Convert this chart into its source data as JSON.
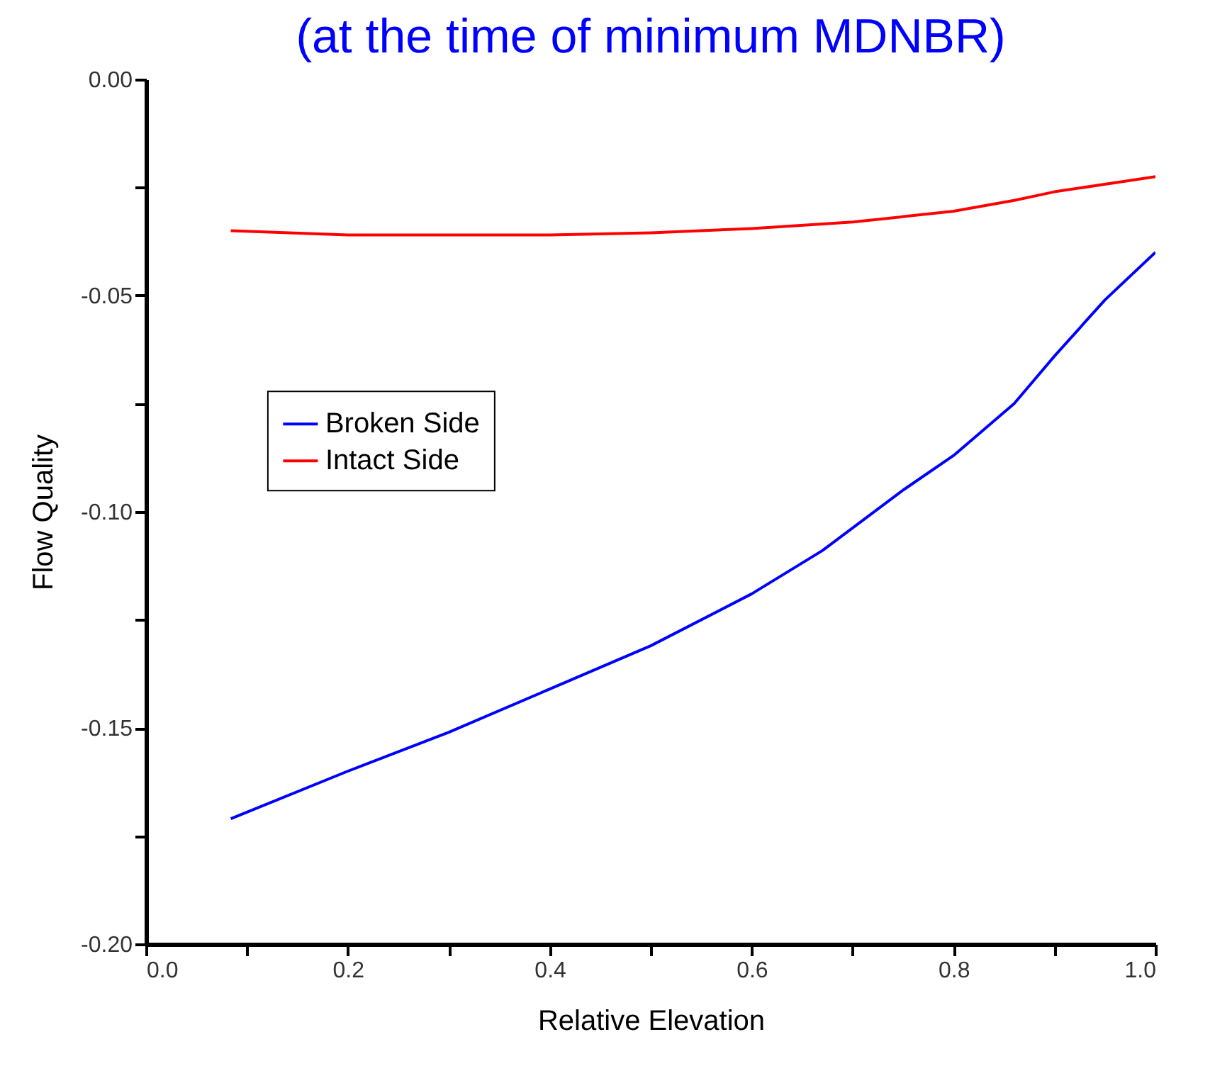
{
  "chart_data": {
    "type": "line",
    "title": "(at the time of minimum MDNBR)",
    "xlabel": "Relative Elevation",
    "ylabel": "Flow Quality",
    "series": [
      {
        "name": "Broken Side",
        "color": "#0000ff",
        "x": [
          0.084,
          0.2,
          0.3,
          0.4,
          0.5,
          0.6,
          0.67,
          0.75,
          0.8,
          0.86,
          0.9,
          0.95,
          1.0
        ],
        "values": [
          -0.171,
          -0.16,
          -0.151,
          -0.141,
          -0.131,
          -0.119,
          -0.109,
          -0.095,
          -0.087,
          -0.075,
          -0.064,
          -0.051,
          -0.04
        ]
      },
      {
        "name": "Intact Side",
        "color": "#ff0000",
        "x": [
          0.084,
          0.2,
          0.3,
          0.4,
          0.5,
          0.6,
          0.7,
          0.8,
          0.86,
          0.9,
          1.0
        ],
        "values": [
          -0.035,
          -0.036,
          -0.036,
          -0.036,
          -0.0355,
          -0.0345,
          -0.033,
          -0.0305,
          -0.028,
          -0.026,
          -0.0225
        ]
      }
    ],
    "xlim": [
      0,
      1
    ],
    "ylim": [
      -0.2,
      0
    ],
    "xticks": [
      {
        "value": 0,
        "label": "0.0"
      },
      {
        "value": 0.1,
        "label": null
      },
      {
        "value": 0.2,
        "label": "0.2"
      },
      {
        "value": 0.3,
        "label": null
      },
      {
        "value": 0.4,
        "label": "0.4"
      },
      {
        "value": 0.5,
        "label": null
      },
      {
        "value": 0.6,
        "label": "0.6"
      },
      {
        "value": 0.7,
        "label": null
      },
      {
        "value": 0.8,
        "label": "0.8"
      },
      {
        "value": 0.9,
        "label": null
      },
      {
        "value": 1,
        "label": "1.0"
      }
    ],
    "yticks": [
      {
        "value": -0.2,
        "label": "-0.20"
      },
      {
        "value": -0.175,
        "label": null
      },
      {
        "value": -0.15,
        "label": "-0.15"
      },
      {
        "value": -0.125,
        "label": null
      },
      {
        "value": -0.1,
        "label": "-0.10"
      },
      {
        "value": -0.075,
        "label": null
      },
      {
        "value": -0.05,
        "label": "-0.05"
      },
      {
        "value": -0.025,
        "label": null
      },
      {
        "value": 0,
        "label": "0.00"
      }
    ],
    "grid": false,
    "legend": "left",
    "marker": "none",
    "line_style": "solid"
  }
}
